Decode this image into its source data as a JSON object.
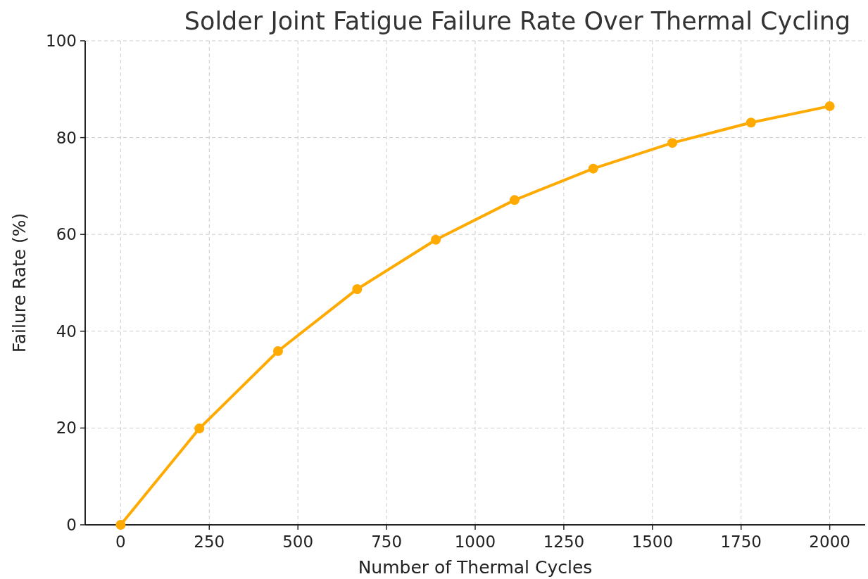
{
  "chart_data": {
    "type": "line",
    "title": "Solder Joint Fatigue Failure Rate Over Thermal Cycling",
    "xlabel": "Number of Thermal Cycles",
    "ylabel": "Failure Rate (%)",
    "x": [
      0,
      222,
      444,
      667,
      889,
      1111,
      1333,
      1556,
      1778,
      2000
    ],
    "series": [
      {
        "color": "#ffaa00",
        "values": [
          0,
          19.9,
          35.9,
          48.7,
          58.9,
          67.1,
          73.6,
          78.9,
          83.1,
          86.5
        ]
      }
    ],
    "xlim": [
      -100,
      2100
    ],
    "xticks": [
      0,
      250,
      500,
      750,
      1000,
      1250,
      1500,
      1750,
      2000
    ],
    "ylim": [
      0,
      100
    ],
    "yticks": [
      0,
      20,
      40,
      60,
      80,
      100
    ],
    "grid": true,
    "marker": "circle",
    "line_style": "solid"
  }
}
